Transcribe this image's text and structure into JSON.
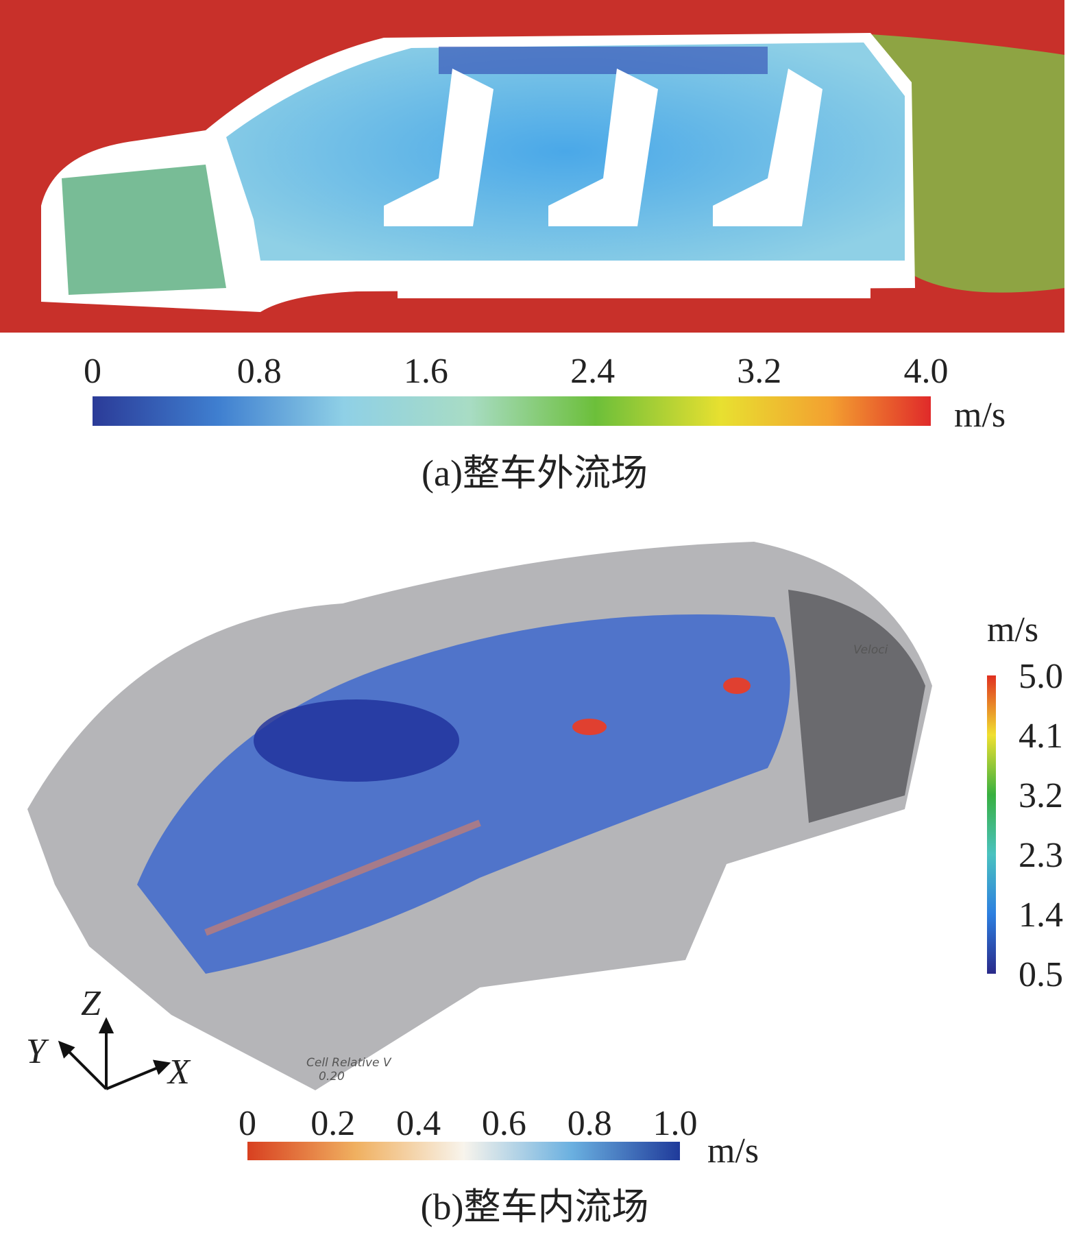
{
  "panel_a": {
    "colorbar": {
      "ticks": [
        0,
        0.8,
        1.6,
        2.4,
        3.2,
        {
          "value": 4,
          "label": "4.0"
        }
      ],
      "unit": "m/s"
    },
    "caption": "(a)整车外流场"
  },
  "panel_b": {
    "vertical_colorbar": {
      "unit": "m/s",
      "ticks": [
        {
          "value": 5,
          "label": "5.0"
        },
        4.1,
        3.2,
        2.3,
        1.4,
        0.5
      ]
    },
    "horizontal_colorbar": {
      "ticks": [
        0,
        0.2,
        0.4,
        0.6,
        0.8,
        {
          "value": 1,
          "label": "1.0"
        }
      ],
      "unit": "m/s"
    },
    "axis_labels": {
      "z": "Z",
      "y": "Y",
      "x": "X"
    },
    "overlay_texts": [
      "Veloci",
      "Cell Relative V",
      "0.20"
    ],
    "caption": "(b)整车内流场"
  }
}
